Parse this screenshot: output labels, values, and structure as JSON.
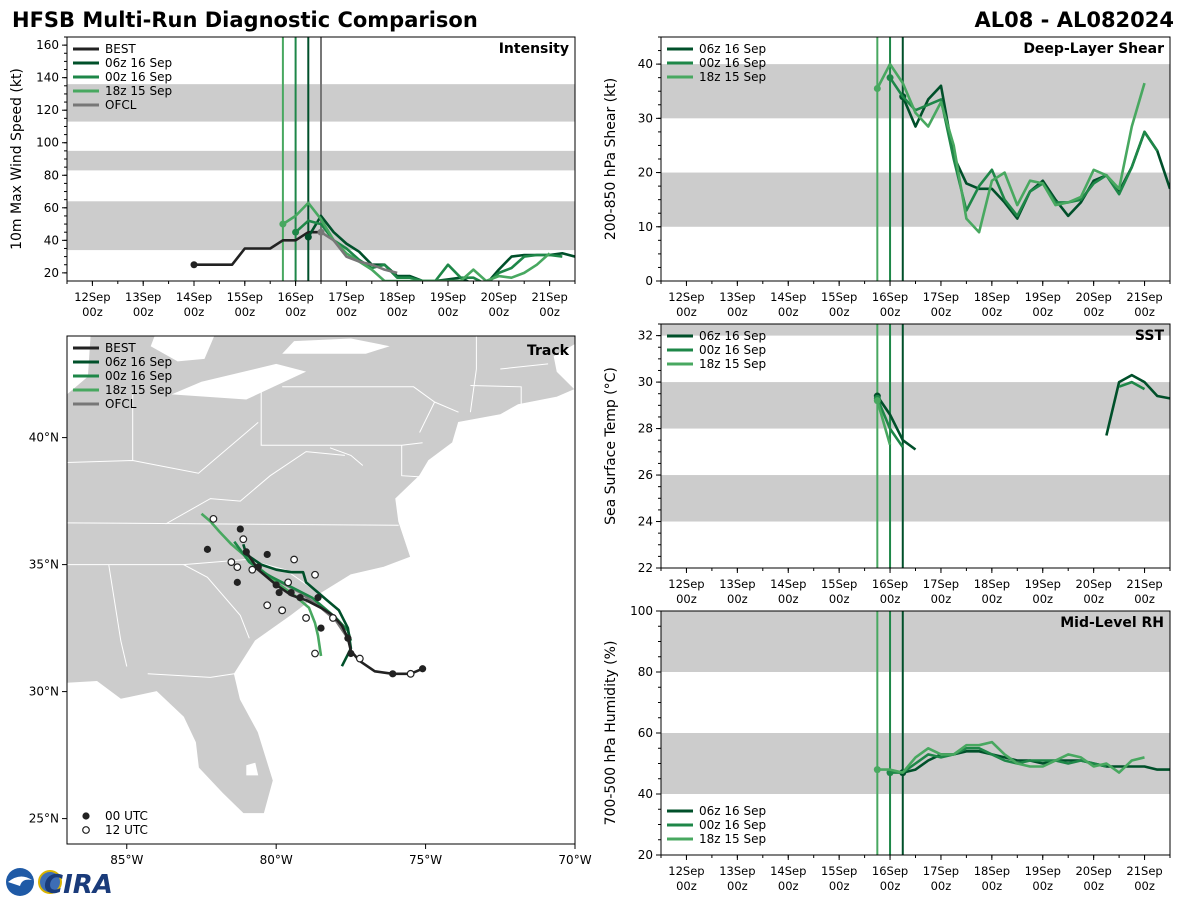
{
  "header": {
    "title": "HFSB Multi-Run Diagnostic Comparison",
    "storm": "AL08 - AL082024"
  },
  "logo": {
    "text": "CIRA"
  },
  "colors": {
    "BEST": "#222222",
    "06z 16 Sep": "#00502a",
    "00z 16 Sep": "#1e8748",
    "18z 15 Sep": "#48a860",
    "OFCL": "#777777",
    "band": "#cccccc",
    "land": "#cccccc"
  },
  "time_axis": {
    "ticks": [
      "12Sep\n00z",
      "13Sep\n00z",
      "14Sep\n00z",
      "15Sep\n00z",
      "16Sep\n00z",
      "17Sep\n00z",
      "18Sep\n00z",
      "19Sep\n00z",
      "20Sep\n00z",
      "21Sep\n00z"
    ],
    "range": [
      -0.5,
      9.5
    ],
    "init_lines": [
      {
        "run": "18z 15 Sep",
        "t": 3.75
      },
      {
        "run": "00z 16 Sep",
        "t": 4.0
      },
      {
        "run": "06z 16 Sep",
        "t": 4.25
      }
    ]
  },
  "chart_data": [
    {
      "id": "intensity",
      "type": "line",
      "title": "Intensity",
      "ylabel": "10m Max Wind Speed (kt)",
      "ylim": [
        15,
        165
      ],
      "yticks": [
        20,
        40,
        60,
        80,
        100,
        120,
        140,
        160
      ],
      "bands": [
        [
          34,
          64
        ],
        [
          83,
          95
        ],
        [
          113,
          136
        ]
      ],
      "ofcl_line": 4.5,
      "legend": [
        "BEST",
        "06z 16 Sep",
        "00z 16 Sep",
        "18z 15 Sep",
        "OFCL"
      ],
      "series": [
        {
          "name": "BEST",
          "x": [
            2,
            2.25,
            2.5,
            2.75,
            3,
            3.25,
            3.5,
            3.75,
            4,
            4.25,
            4.5
          ],
          "y": [
            25,
            25,
            25,
            25,
            35,
            35,
            35,
            40,
            40,
            45,
            45
          ]
        },
        {
          "name": "06z 16 Sep",
          "x": [
            4.25,
            4.5,
            4.75,
            5,
            5.25,
            5.5,
            5.75,
            6,
            6.25,
            6.5,
            6.75,
            7,
            7.25,
            7.5,
            7.75,
            8,
            8.25,
            8.5,
            8.75,
            9,
            9.25,
            9.5
          ],
          "y": [
            42,
            55,
            45,
            38,
            33,
            25,
            25,
            18,
            18,
            15,
            15,
            16,
            17,
            13,
            13,
            22,
            30,
            31,
            31,
            31,
            32,
            30
          ]
        },
        {
          "name": "00z 16 Sep",
          "x": [
            4,
            4.25,
            4.5,
            4.75,
            5,
            5.25,
            5.5,
            5.75,
            6,
            6.25,
            6.5,
            6.75,
            7,
            7.25,
            7.5,
            7.75,
            8,
            8.25,
            8.5,
            8.75,
            9,
            9.25
          ],
          "y": [
            45,
            52,
            50,
            40,
            35,
            28,
            23,
            25,
            17,
            17,
            15,
            15,
            25,
            17,
            17,
            13,
            20,
            23,
            30,
            31,
            31,
            30
          ]
        },
        {
          "name": "18z 15 Sep",
          "x": [
            3.75,
            4,
            4.25,
            4.5,
            4.75,
            5,
            5.25,
            5.5,
            5.75,
            6,
            6.25,
            6.5,
            6.75,
            7,
            7.25,
            7.5,
            7.75,
            8,
            8.25,
            8.5,
            8.75,
            9
          ],
          "y": [
            50,
            55,
            63,
            53,
            40,
            32,
            27,
            22,
            15,
            15,
            15,
            15,
            15,
            15,
            15,
            22,
            15,
            18,
            17,
            20,
            25,
            32
          ]
        },
        {
          "name": "OFCL",
          "x": [
            4.5,
            4.75,
            5,
            5.25,
            5.5,
            5.75,
            6
          ],
          "y": [
            45,
            40,
            30,
            27,
            25,
            22,
            20
          ]
        }
      ]
    },
    {
      "id": "shear",
      "type": "line",
      "title": "Deep-Layer Shear",
      "ylabel": "200-850 hPa Shear (kt)",
      "ylim": [
        0,
        45
      ],
      "yticks": [
        0,
        10,
        20,
        30,
        40
      ],
      "bands": [
        [
          10,
          20
        ],
        [
          30,
          40
        ]
      ],
      "legend": [
        "06z 16 Sep",
        "00z 16 Sep",
        "18z 15 Sep"
      ],
      "series": [
        {
          "name": "06z 16 Sep",
          "x": [
            4.25,
            4.5,
            4.75,
            5,
            5.25,
            5.5,
            5.75,
            6,
            6.25,
            6.5,
            6.75,
            7,
            7.25,
            7.5,
            7.75,
            8,
            8.25,
            8.5,
            8.75,
            9,
            9.25,
            9.5
          ],
          "y": [
            34,
            28.5,
            33.5,
            36,
            23,
            18,
            17,
            17,
            14.5,
            11.5,
            16.5,
            18.5,
            15,
            12,
            14.5,
            18.5,
            19.5,
            16.5,
            21,
            27.5,
            24,
            17
          ]
        },
        {
          "name": "00z 16 Sep",
          "x": [
            4,
            4.25,
            4.5,
            4.75,
            5,
            5.25,
            5.5,
            5.75,
            6,
            6.25,
            6.5,
            6.75,
            7,
            7.25,
            7.5,
            7.75,
            8,
            8.25,
            8.5,
            8.75,
            9,
            9.25
          ],
          "y": [
            37.5,
            34,
            31.5,
            32.5,
            33.5,
            22.5,
            13,
            17.5,
            20.5,
            15,
            12,
            16.5,
            18,
            14.5,
            14.5,
            15,
            18,
            19.5,
            16,
            21,
            27.5,
            24
          ]
        },
        {
          "name": "18z 15 Sep",
          "x": [
            3.75,
            4,
            4.25,
            4.5,
            4.75,
            5,
            5.25,
            5.5,
            5.75,
            6,
            6.25,
            6.5,
            6.75,
            7,
            7.25,
            7.5,
            7.75,
            8,
            8.25,
            8.5,
            8.75,
            9
          ],
          "y": [
            35.5,
            40,
            36.5,
            31,
            28.5,
            33,
            25,
            11.5,
            9,
            18.5,
            20,
            14,
            18.5,
            18,
            14,
            14.5,
            15.5,
            20.5,
            19.5,
            17,
            28.5,
            36.5
          ]
        }
      ]
    },
    {
      "id": "sst",
      "type": "line",
      "title": "SST",
      "ylabel": "Sea Surface Temp (°C)",
      "ylim": [
        22,
        32.5
      ],
      "yticks": [
        22,
        24,
        26,
        28,
        30,
        32
      ],
      "bands": [
        [
          24,
          26
        ],
        [
          28,
          30
        ],
        [
          32,
          32.5
        ]
      ],
      "legend": [
        "06z 16 Sep",
        "00z 16 Sep",
        "18z 15 Sep"
      ],
      "series": [
        {
          "name": "06z 16 Sep",
          "x": [
            3.75,
            4,
            4.25,
            4.5
          ],
          "y": [
            29.4,
            28.6,
            27.5,
            27.1
          ]
        },
        {
          "name": "00z 16 Sep",
          "x": [
            3.75,
            4,
            4.25
          ],
          "y": [
            29.3,
            28.0,
            27.2
          ]
        },
        {
          "name": "18z 15 Sep",
          "x": [
            3.75,
            4
          ],
          "y": [
            29.2,
            27.3
          ]
        },
        {
          "name": "06z 16 Sep",
          "x": [
            8.25,
            8.5,
            8.75,
            9,
            9.25,
            9.5
          ],
          "y": [
            27.7,
            30.0,
            30.3,
            30.0,
            29.4,
            29.3
          ]
        },
        {
          "name": "00z 16 Sep",
          "x": [
            8.5,
            8.75,
            9
          ],
          "y": [
            29.8,
            30.0,
            29.7
          ]
        }
      ]
    },
    {
      "id": "rh",
      "type": "line",
      "title": "Mid-Level RH",
      "ylabel": "700-500 hPa Humidity (%)",
      "ylim": [
        20,
        100
      ],
      "yticks": [
        20,
        40,
        60,
        80,
        100
      ],
      "bands": [
        [
          40,
          60
        ],
        [
          80,
          100
        ]
      ],
      "legend": [
        "06z 16 Sep",
        "00z 16 Sep",
        "18z 15 Sep"
      ],
      "series": [
        {
          "name": "06z 16 Sep",
          "x": [
            4.25,
            4.5,
            4.75,
            5,
            5.25,
            5.5,
            5.75,
            6,
            6.25,
            6.5,
            6.75,
            7,
            7.25,
            7.5,
            7.75,
            8,
            8.25,
            8.5,
            8.75,
            9,
            9.25,
            9.5
          ],
          "y": [
            47,
            48,
            51,
            53,
            53,
            54,
            54,
            53,
            52,
            51,
            51,
            50,
            51,
            51,
            51,
            50,
            49,
            49,
            49,
            49,
            48,
            48
          ]
        },
        {
          "name": "00z 16 Sep",
          "x": [
            4,
            4.25,
            4.5,
            4.75,
            5,
            5.25,
            5.5,
            5.75,
            6,
            6.25,
            6.5,
            6.75,
            7,
            7.25,
            7.5,
            7.75,
            8,
            8.25
          ],
          "y": [
            47,
            47,
            50,
            53,
            52,
            53,
            55,
            55,
            53,
            51,
            50,
            51,
            51,
            51,
            50,
            51,
            50,
            49
          ]
        },
        {
          "name": "18z 15 Sep",
          "x": [
            3.75,
            4,
            4.25,
            4.5,
            4.75,
            5,
            5.25,
            5.5,
            5.75,
            6,
            6.25,
            6.5,
            6.75,
            7,
            7.25,
            7.5,
            7.75,
            8,
            8.25,
            8.5,
            8.75,
            9
          ],
          "y": [
            48,
            48,
            47,
            52,
            55,
            53,
            53,
            56,
            56,
            57,
            53,
            50,
            49,
            49,
            51,
            53,
            52,
            49,
            50,
            47,
            51,
            52
          ]
        }
      ]
    },
    {
      "id": "track",
      "type": "scatter",
      "title": "Track",
      "xlim": [
        -87,
        -70
      ],
      "ylim": [
        24,
        44
      ],
      "xticks": [
        -85,
        -80,
        -75,
        -70
      ],
      "xtick_labels": [
        "85°W",
        "80°W",
        "75°W",
        "70°W"
      ],
      "yticks": [
        25,
        30,
        35,
        40
      ],
      "ytick_labels": [
        "25°N",
        "30°N",
        "35°N",
        "40°N"
      ],
      "legend": [
        "BEST",
        "06z 16 Sep",
        "00z 16 Sep",
        "18z 15 Sep",
        "OFCL"
      ],
      "marker_legend": [
        "00 UTC",
        "12 UTC"
      ],
      "series": [
        {
          "name": "BEST",
          "lon": [
            -75.1,
            -75.5,
            -76.1,
            -76.7,
            -77.2,
            -77.5,
            -77.6,
            -77.8,
            -78.1,
            -78.5,
            -79.0,
            -79.5,
            -80.0,
            -80.6,
            -81.0
          ],
          "lat": [
            30.9,
            30.7,
            30.7,
            30.8,
            31.2,
            31.6,
            32.1,
            32.6,
            33.0,
            33.3,
            33.6,
            33.8,
            34.2,
            34.8,
            35.5
          ]
        },
        {
          "name": "06z 16 Sep",
          "lon": [
            -77.8,
            -77.5,
            -77.6,
            -77.9,
            -78.3,
            -78.6,
            -79.0,
            -79.1,
            -79.5,
            -80.0,
            -80.5,
            -81.0,
            -81.1
          ],
          "lat": [
            31.0,
            31.7,
            32.5,
            33.2,
            33.6,
            33.9,
            34.3,
            34.7,
            34.7,
            34.8,
            35.0,
            35.4,
            35.8
          ]
        },
        {
          "name": "00z 16 Sep",
          "lon": [
            -77.5,
            -77.6,
            -78.0,
            -78.4,
            -78.8,
            -79.3,
            -79.8,
            -80.3,
            -80.9,
            -81.4
          ],
          "lat": [
            32.0,
            32.4,
            32.9,
            33.3,
            33.7,
            34.0,
            34.3,
            34.6,
            35.1,
            35.9
          ]
        },
        {
          "name": "18z 15 Sep",
          "lon": [
            -78.5,
            -78.6,
            -78.7,
            -78.9,
            -79.4,
            -80.0,
            -80.5,
            -81.0,
            -81.5,
            -81.9,
            -82.2,
            -82.5
          ],
          "lat": [
            31.4,
            32.2,
            32.7,
            33.3,
            33.8,
            34.3,
            34.8,
            35.3,
            35.8,
            36.3,
            36.7,
            37.0
          ]
        },
        {
          "name": "OFCL",
          "lon": [
            -77.6,
            -78.0,
            -78.5,
            -79.2,
            -80.0,
            -80.7
          ],
          "lat": [
            32.1,
            32.8,
            33.3,
            33.9,
            34.4,
            34.9
          ]
        }
      ],
      "markers_00utc": {
        "lon": [
          -75.1,
          -76.1,
          -77.5,
          -78.5,
          -79.2,
          -79.9,
          -80.6,
          -81.2,
          -82.3,
          -78.6,
          -79.5,
          -80.0,
          -80.3,
          -81.0,
          -81.3,
          -77.6
        ],
        "lat": [
          30.9,
          30.7,
          31.5,
          32.5,
          33.7,
          33.9,
          34.9,
          36.4,
          35.6,
          33.7,
          33.9,
          34.2,
          35.4,
          35.5,
          34.3,
          32.1
        ]
      },
      "markers_12utc": {
        "lon": [
          -75.5,
          -77.2,
          -78.7,
          -79.0,
          -79.8,
          -80.3,
          -80.8,
          -81.3,
          -81.5,
          -82.1,
          -79.4,
          -78.7,
          -79.6,
          -81.1,
          -78.1
        ],
        "lat": [
          30.7,
          31.3,
          31.5,
          32.9,
          33.2,
          33.4,
          34.8,
          34.9,
          35.1,
          36.8,
          35.2,
          34.6,
          34.3,
          36.0,
          32.9
        ]
      }
    }
  ]
}
